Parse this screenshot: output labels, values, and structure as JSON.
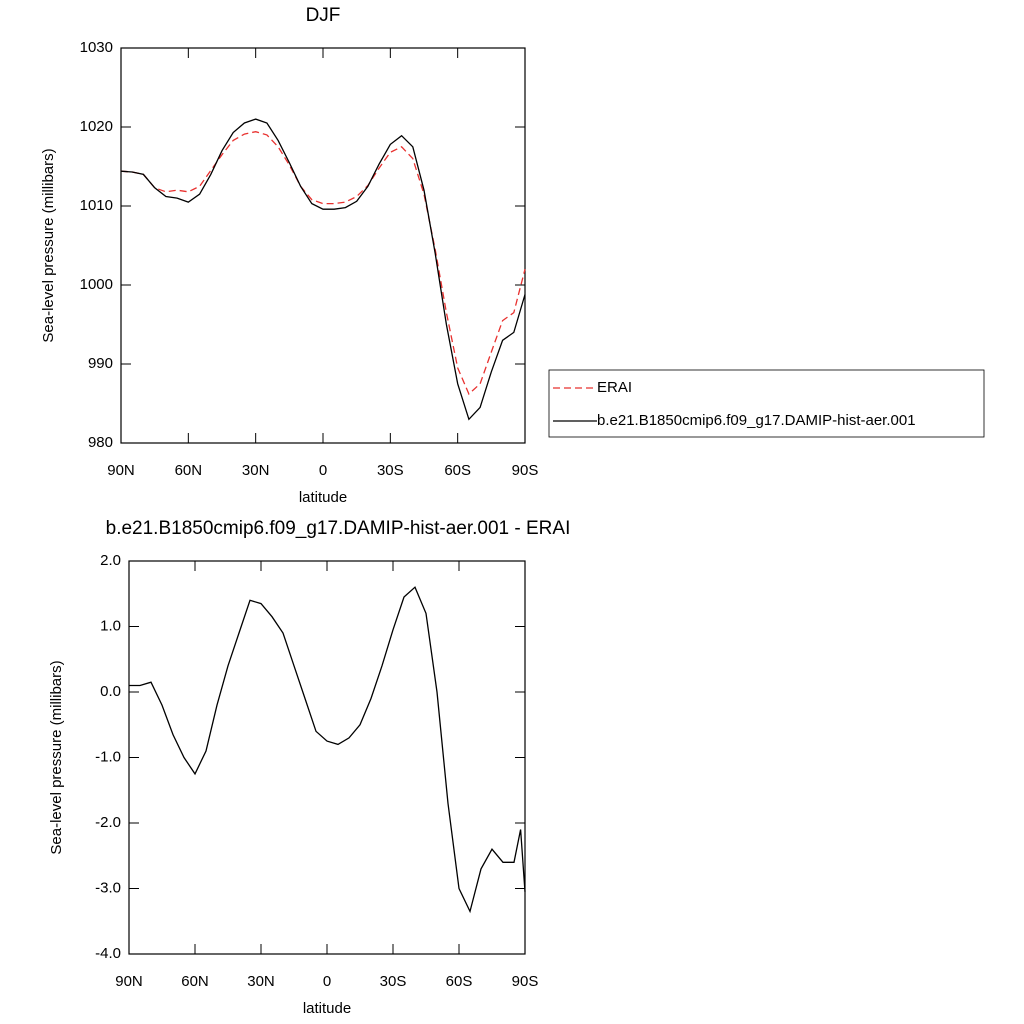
{
  "chart_data": [
    {
      "type": "line",
      "title": "DJF",
      "x_label": "latitude",
      "y_label": "Sea-level pressure (millibars)",
      "x": [
        90,
        85,
        80,
        75,
        70,
        65,
        60,
        55,
        50,
        45,
        40,
        35,
        30,
        25,
        20,
        15,
        10,
        5,
        0,
        -5,
        -10,
        -15,
        -20,
        -25,
        -30,
        -35,
        -40,
        -45,
        -50,
        -55,
        -60,
        -65,
        -70,
        -75,
        -80,
        -85,
        -90
      ],
      "series": [
        {
          "name": "ERAI",
          "color": "#e8312f",
          "dash": true,
          "values": [
            1014.4,
            1014.3,
            1014.0,
            1012.3,
            1011.8,
            1012.0,
            1011.8,
            1012.5,
            1014.5,
            1016.5,
            1018.3,
            1019.1,
            1019.4,
            1019.0,
            1017.5,
            1015.2,
            1012.5,
            1010.8,
            1010.3,
            1010.3,
            1010.5,
            1011.2,
            1012.6,
            1014.8,
            1016.8,
            1017.5,
            1016.0,
            1011.5,
            1004.5,
            996.5,
            989.5,
            986.2,
            987.5,
            991.5,
            995.5,
            996.5,
            1002.0
          ]
        },
        {
          "name": "b.e21.B1850cmip6.f09_g17.DAMIP-hist-aer.001",
          "color": "#000000",
          "dash": false,
          "values": [
            1014.4,
            1014.3,
            1014.0,
            1012.3,
            1011.2,
            1011.0,
            1010.5,
            1011.5,
            1014.0,
            1017.0,
            1019.3,
            1020.5,
            1021.0,
            1020.5,
            1018.3,
            1015.5,
            1012.5,
            1010.3,
            1009.6,
            1009.6,
            1009.8,
            1010.6,
            1012.5,
            1015.3,
            1017.8,
            1018.9,
            1017.5,
            1012.0,
            1004.0,
            995.0,
            987.5,
            983.0,
            984.5,
            989.0,
            993.0,
            994.0,
            998.8
          ]
        }
      ],
      "xlim": [
        90,
        -90
      ],
      "xticks": [
        {
          "value": 90,
          "label": "90N"
        },
        {
          "value": 60,
          "label": "60N"
        },
        {
          "value": 30,
          "label": "30N"
        },
        0,
        {
          "value": -30,
          "label": "30S"
        },
        {
          "value": -60,
          "label": "60S"
        },
        {
          "value": -90,
          "label": "90S"
        }
      ],
      "ylim": [
        980,
        1030
      ],
      "yticks": [
        980,
        990,
        1000,
        1010,
        1020,
        1030
      ],
      "legend": "right"
    },
    {
      "type": "line",
      "title": "b.e21.B1850cmip6.f09_g17.DAMIP-hist-aer.001 - ERAI",
      "x_label": "latitude",
      "y_label": "Sea-level pressure (millibars)",
      "x": [
        90,
        85,
        80,
        75,
        70,
        65,
        60,
        55,
        50,
        45,
        40,
        35,
        30,
        25,
        20,
        15,
        10,
        5,
        0,
        -5,
        -10,
        -15,
        -20,
        -25,
        -30,
        -35,
        -40,
        -45,
        -50,
        -55,
        -60,
        -65,
        -70,
        -75,
        -80,
        -85,
        -88,
        -90
      ],
      "series": [
        {
          "color": "#000000",
          "dash": false,
          "values": [
            0.1,
            0.1,
            0.15,
            -0.2,
            -0.65,
            -1.0,
            -1.25,
            -0.9,
            -0.2,
            0.4,
            0.9,
            1.4,
            1.35,
            1.15,
            0.9,
            0.4,
            -0.1,
            -0.6,
            -0.75,
            -0.8,
            -0.7,
            -0.5,
            -0.1,
            0.4,
            0.95,
            1.45,
            1.6,
            1.2,
            0.0,
            -1.7,
            -3.0,
            -3.35,
            -2.7,
            -2.4,
            -2.6,
            -2.6,
            -2.1,
            -3.05
          ]
        }
      ],
      "xlim": [
        90,
        -90
      ],
      "xticks": [
        {
          "value": 90,
          "label": "90N"
        },
        {
          "value": 60,
          "label": "60N"
        },
        {
          "value": 30,
          "label": "30N"
        },
        0,
        {
          "value": -30,
          "label": "30S"
        },
        {
          "value": -60,
          "label": "60S"
        },
        {
          "value": -90,
          "label": "90S"
        }
      ],
      "ylim": [
        -4,
        2
      ],
      "yticks": [
        {
          "value": -4,
          "label": "-4.0"
        },
        {
          "value": -3,
          "label": "-3.0"
        },
        {
          "value": -2,
          "label": "-2.0"
        },
        {
          "value": -1,
          "label": "-1.0"
        },
        {
          "value": 0,
          "label": "0.0"
        },
        {
          "value": 1,
          "label": "1.0"
        },
        {
          "value": 2,
          "label": "2.0"
        }
      ]
    }
  ]
}
